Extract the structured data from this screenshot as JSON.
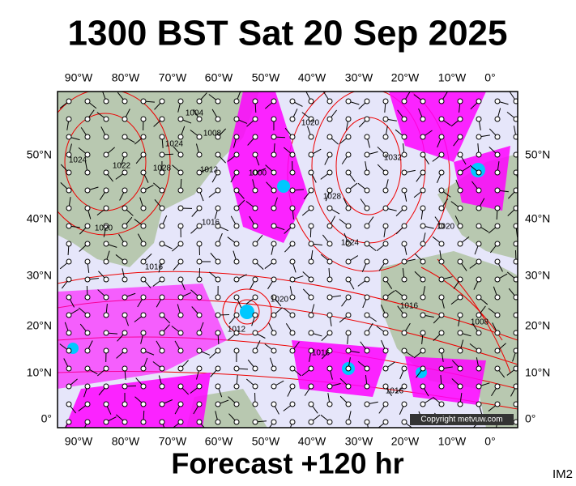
{
  "header": {
    "title": "1300 BST Sat 20 Sep 2025"
  },
  "map": {
    "lon_labels": [
      "90°W",
      "80°W",
      "70°W",
      "60°W",
      "50°W",
      "40°W",
      "30°W",
      "20°W",
      "10°W",
      "0°"
    ],
    "lat_labels": [
      "50°N",
      "40°N",
      "30°N",
      "20°N",
      "10°N",
      "0°"
    ],
    "isobar_labels": [
      "1024",
      "1022",
      "1020",
      "1028",
      "1024",
      "1004",
      "1008",
      "1012",
      "1000",
      "1016",
      "1016",
      "1020",
      "1012",
      "1016",
      "1020",
      "1028",
      "1032",
      "1024",
      "1016",
      "1008",
      "1020",
      "1016"
    ],
    "copyright": "Copyright metvuw.com"
  },
  "footer": {
    "forecast": "Forecast +120 hr",
    "code": "IM2"
  }
}
